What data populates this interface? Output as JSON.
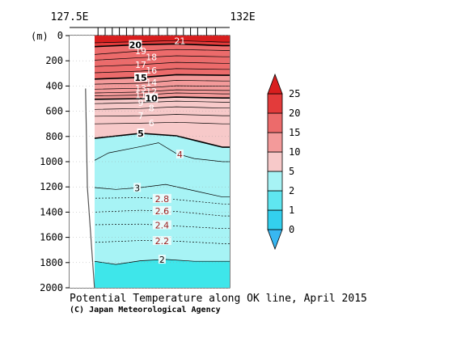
{
  "chart_data": {
    "type": "contour",
    "title": "Potential Temperature along OK line, April 2015",
    "credit": "(C) Japan Meteorological Agency",
    "xaxis": {
      "range": [
        127.5,
        132
      ],
      "start_label": "127.5E",
      "end_label": "132E"
    },
    "yaxis": {
      "label": "(m)",
      "range": [
        0,
        2000
      ],
      "reversed": true,
      "ticks": [
        {
          "value": 0,
          "label": "0"
        },
        {
          "value": 200,
          "label": "200"
        },
        {
          "value": 400,
          "label": "400"
        },
        {
          "value": 600,
          "label": "600"
        },
        {
          "value": 800,
          "label": "800"
        },
        {
          "value": 1000,
          "label": "1000"
        },
        {
          "value": 1200,
          "label": "1200"
        },
        {
          "value": 1400,
          "label": "1400"
        },
        {
          "value": 1600,
          "label": "1600"
        },
        {
          "value": 1800,
          "label": "1800"
        },
        {
          "value": 2000,
          "label": "2000"
        }
      ]
    },
    "stations_lon": [
      128.3,
      128.5,
      128.7,
      128.9,
      129.1,
      129.3,
      129.55,
      129.75,
      130.0,
      130.25,
      130.5,
      130.7,
      130.9,
      131.1,
      131.35,
      131.6
    ],
    "bottom_depth": [
      {
        "lon": 127.95,
        "depth": 420
      },
      {
        "lon": 128.0,
        "depth": 1200
      },
      {
        "lon": 128.2,
        "depth": 2000
      }
    ],
    "contours": [
      {
        "value": 21,
        "label": "21",
        "depths": [
          {
            "lon": 128.2,
            "depth": 58
          },
          {
            "lon": 129.5,
            "depth": 48
          },
          {
            "lon": 130.5,
            "depth": 40
          },
          {
            "lon": 131.8,
            "depth": 52
          }
        ]
      },
      {
        "value": 20,
        "label": "20",
        "bold": true,
        "depths": [
          {
            "lon": 128.2,
            "depth": 88
          },
          {
            "lon": 129.5,
            "depth": 72
          },
          {
            "lon": 130.5,
            "depth": 66
          },
          {
            "lon": 131.8,
            "depth": 80
          }
        ]
      },
      {
        "value": 19,
        "label": "19",
        "depths": [
          {
            "lon": 128.2,
            "depth": 150
          },
          {
            "lon": 129.5,
            "depth": 122
          },
          {
            "lon": 130.5,
            "depth": 110
          },
          {
            "lon": 131.8,
            "depth": 118
          }
        ]
      },
      {
        "value": 18,
        "label": "18",
        "depths": [
          {
            "lon": 128.2,
            "depth": 195
          },
          {
            "lon": 129.5,
            "depth": 175
          },
          {
            "lon": 130.5,
            "depth": 160
          },
          {
            "lon": 131.8,
            "depth": 168
          }
        ]
      },
      {
        "value": 17,
        "label": "17",
        "depths": [
          {
            "lon": 128.2,
            "depth": 245
          },
          {
            "lon": 129.5,
            "depth": 230
          },
          {
            "lon": 130.5,
            "depth": 212
          },
          {
            "lon": 131.8,
            "depth": 220
          }
        ]
      },
      {
        "value": 16,
        "label": "16",
        "depths": [
          {
            "lon": 128.2,
            "depth": 295
          },
          {
            "lon": 129.5,
            "depth": 282
          },
          {
            "lon": 130.5,
            "depth": 262
          },
          {
            "lon": 131.8,
            "depth": 268
          }
        ]
      },
      {
        "value": 15,
        "label": "15",
        "bold": true,
        "depths": [
          {
            "lon": 128.2,
            "depth": 345
          },
          {
            "lon": 129.5,
            "depth": 332
          },
          {
            "lon": 130.5,
            "depth": 310
          },
          {
            "lon": 131.8,
            "depth": 315
          }
        ]
      },
      {
        "value": 14,
        "label": "14",
        "depths": [
          {
            "lon": 128.2,
            "depth": 385
          },
          {
            "lon": 129.5,
            "depth": 378
          },
          {
            "lon": 130.5,
            "depth": 355
          },
          {
            "lon": 131.8,
            "depth": 360
          }
        ]
      },
      {
        "value": 13,
        "label": "13",
        "depths": [
          {
            "lon": 128.2,
            "depth": 425
          },
          {
            "lon": 129.5,
            "depth": 418
          },
          {
            "lon": 130.5,
            "depth": 398
          },
          {
            "lon": 131.8,
            "depth": 402
          }
        ]
      },
      {
        "value": 12,
        "label": "12",
        "depths": [
          {
            "lon": 128.2,
            "depth": 455
          },
          {
            "lon": 129.5,
            "depth": 448
          },
          {
            "lon": 130.5,
            "depth": 430
          },
          {
            "lon": 131.8,
            "depth": 435
          }
        ]
      },
      {
        "value": 11,
        "label": "11",
        "depths": [
          {
            "lon": 128.2,
            "depth": 478
          },
          {
            "lon": 129.5,
            "depth": 472
          },
          {
            "lon": 130.5,
            "depth": 455
          },
          {
            "lon": 131.8,
            "depth": 462
          }
        ]
      },
      {
        "value": 10,
        "label": "10",
        "bold": true,
        "depths": [
          {
            "lon": 128.2,
            "depth": 505
          },
          {
            "lon": 129.5,
            "depth": 500
          },
          {
            "lon": 130.5,
            "depth": 488
          },
          {
            "lon": 131.8,
            "depth": 495
          }
        ]
      },
      {
        "value": 9,
        "label": "9",
        "depths": [
          {
            "lon": 128.2,
            "depth": 540
          },
          {
            "lon": 129.5,
            "depth": 532
          },
          {
            "lon": 130.5,
            "depth": 520
          },
          {
            "lon": 131.8,
            "depth": 528
          }
        ]
      },
      {
        "value": 8,
        "label": "8",
        "depths": [
          {
            "lon": 128.2,
            "depth": 585
          },
          {
            "lon": 129.5,
            "depth": 578
          },
          {
            "lon": 130.5,
            "depth": 565
          },
          {
            "lon": 131.8,
            "depth": 575
          }
        ]
      },
      {
        "value": 7,
        "label": "7",
        "depths": [
          {
            "lon": 128.2,
            "depth": 640
          },
          {
            "lon": 129.5,
            "depth": 635
          },
          {
            "lon": 130.5,
            "depth": 625
          },
          {
            "lon": 131.8,
            "depth": 635
          }
        ]
      },
      {
        "value": 6,
        "label": "6",
        "depths": [
          {
            "lon": 128.2,
            "depth": 700
          },
          {
            "lon": 129.5,
            "depth": 695
          },
          {
            "lon": 130.5,
            "depth": 688
          },
          {
            "lon": 131.8,
            "depth": 700
          }
        ]
      },
      {
        "value": 5,
        "label": "5",
        "bold": true,
        "depths": [
          {
            "lon": 128.2,
            "depth": 815
          },
          {
            "lon": 129.5,
            "depth": 775
          },
          {
            "lon": 130.5,
            "depth": 795
          },
          {
            "lon": 131.8,
            "depth": 885
          }
        ]
      },
      {
        "value": 4,
        "label": "4",
        "depths": [
          {
            "lon": 128.2,
            "depth": 990
          },
          {
            "lon": 128.6,
            "depth": 930
          },
          {
            "lon": 129.5,
            "depth": 880
          },
          {
            "lon": 130.0,
            "depth": 850
          },
          {
            "lon": 130.5,
            "depth": 935
          },
          {
            "lon": 131.0,
            "depth": 975
          },
          {
            "lon": 131.8,
            "depth": 1000
          }
        ]
      },
      {
        "value": 3,
        "label": "3",
        "depths": [
          {
            "lon": 128.2,
            "depth": 1205
          },
          {
            "lon": 128.8,
            "depth": 1220
          },
          {
            "lon": 129.5,
            "depth": 1205
          },
          {
            "lon": 130.2,
            "depth": 1180
          },
          {
            "lon": 131.0,
            "depth": 1230
          },
          {
            "lon": 131.8,
            "depth": 1280
          }
        ]
      },
      {
        "value": 2.8,
        "label": "2.8",
        "dashed": true,
        "depths": [
          {
            "lon": 128.2,
            "depth": 1290
          },
          {
            "lon": 129.5,
            "depth": 1285
          },
          {
            "lon": 130.5,
            "depth": 1300
          },
          {
            "lon": 131.8,
            "depth": 1335
          }
        ]
      },
      {
        "value": 2.6,
        "label": "2.6",
        "dashed": true,
        "depths": [
          {
            "lon": 128.2,
            "depth": 1400
          },
          {
            "lon": 129.5,
            "depth": 1385
          },
          {
            "lon": 130.5,
            "depth": 1395
          },
          {
            "lon": 131.8,
            "depth": 1430
          }
        ]
      },
      {
        "value": 2.4,
        "label": "2.4",
        "dashed": true,
        "depths": [
          {
            "lon": 128.2,
            "depth": 1500
          },
          {
            "lon": 129.5,
            "depth": 1495
          },
          {
            "lon": 130.5,
            "depth": 1510
          },
          {
            "lon": 131.8,
            "depth": 1530
          }
        ]
      },
      {
        "value": 2.2,
        "label": "2.2",
        "dashed": true,
        "depths": [
          {
            "lon": 128.2,
            "depth": 1640
          },
          {
            "lon": 129.5,
            "depth": 1625
          },
          {
            "lon": 130.5,
            "depth": 1630
          },
          {
            "lon": 131.8,
            "depth": 1650
          }
        ]
      },
      {
        "value": 2,
        "label": "2",
        "depths": [
          {
            "lon": 128.2,
            "depth": 1790
          },
          {
            "lon": 128.8,
            "depth": 1815
          },
          {
            "lon": 129.5,
            "depth": 1785
          },
          {
            "lon": 130.2,
            "depth": 1775
          },
          {
            "lon": 131.0,
            "depth": 1790
          },
          {
            "lon": 131.8,
            "depth": 1790
          }
        ]
      }
    ],
    "colorbar": {
      "levels": [
        "0",
        "1",
        "2",
        "5",
        "10",
        "15",
        "20",
        "25"
      ],
      "colors": [
        "#38b7f2",
        "#33d0ee",
        "#5fe6f0",
        "#a7f3f5",
        "#f7c9c9",
        "#f39a9a",
        "#ec6b6b",
        "#e33b3b",
        "#d81e1e"
      ]
    }
  }
}
